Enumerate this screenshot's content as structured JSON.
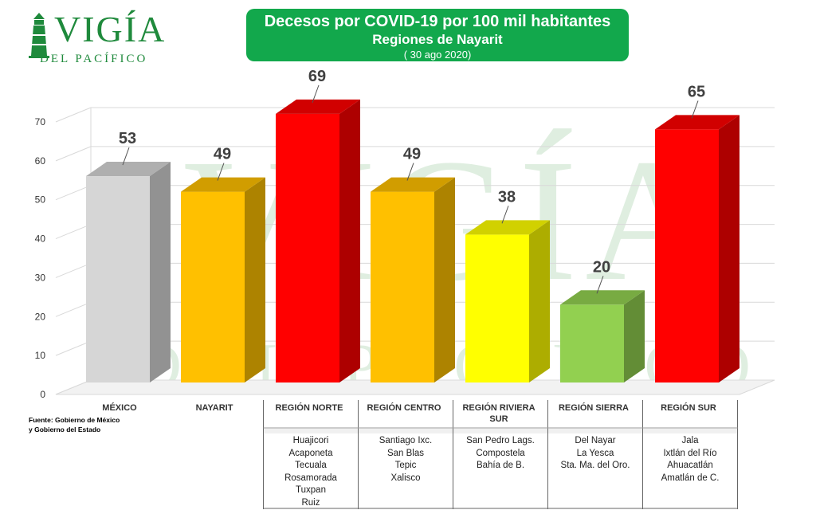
{
  "logo": {
    "name": "VIGÍA",
    "subtitle": "DEL PACÍFICO"
  },
  "title": {
    "line1": "Decesos por COVID-19 por 100 mil habitantes",
    "line2": "Regiones de Nayarit",
    "line3": "( 30 ago 2020)"
  },
  "source": {
    "line1": "Fuente: Gobierno de México",
    "line2": "y Gobierno del Estado"
  },
  "colors": {
    "title_bg": "#12a84c",
    "gray": "#d6d6d6",
    "orange": "#ffc000",
    "red": "#ff0000",
    "yellow": "#ffff00",
    "green": "#92d050",
    "logo_green": "#1f8a3c"
  },
  "chart_data": {
    "type": "bar",
    "title": "Decesos por COVID-19 por 100 mil habitantes",
    "xlabel": "",
    "ylabel": "",
    "ylim": [
      0,
      70
    ],
    "yticks": [
      0,
      10,
      20,
      30,
      40,
      50,
      60,
      70
    ],
    "grid": true,
    "categories": [
      "MÉXICO",
      "NAYARIT",
      "REGIÓN NORTE",
      "REGIÓN CENTRO",
      "REGIÓN RIVIERA SUR",
      "REGIÓN SIERRA",
      "REGIÓN SUR"
    ],
    "category_lines": [
      [
        "MÉXICO"
      ],
      [
        "NAYARIT"
      ],
      [
        "REGIÓN NORTE"
      ],
      [
        "REGIÓN CENTRO"
      ],
      [
        "REGIÓN RIVIERA",
        "SUR"
      ],
      [
        "REGIÓN SIERRA"
      ],
      [
        "REGIÓN SUR"
      ]
    ],
    "values": [
      53,
      49,
      69,
      49,
      38,
      20,
      65
    ],
    "bar_colors": [
      "gray",
      "orange",
      "red",
      "orange",
      "yellow",
      "green",
      "red"
    ]
  },
  "municipalities": [
    [],
    [],
    [
      "Huajicori",
      "Acaponeta",
      "Tecuala",
      "Rosamorada",
      "Tuxpan",
      "Ruiz"
    ],
    [
      "Santiago Ixc.",
      "San Blas",
      "Tepic",
      "Xalisco"
    ],
    [
      "San Pedro Lags.",
      "Compostela",
      "Bahía de B."
    ],
    [
      "Del Nayar",
      "La Yesca",
      "Sta. Ma. del Oro."
    ],
    [
      "Jala",
      "Ixtlán del Río",
      "Ahuacatlán",
      "Amatlán de C."
    ]
  ]
}
